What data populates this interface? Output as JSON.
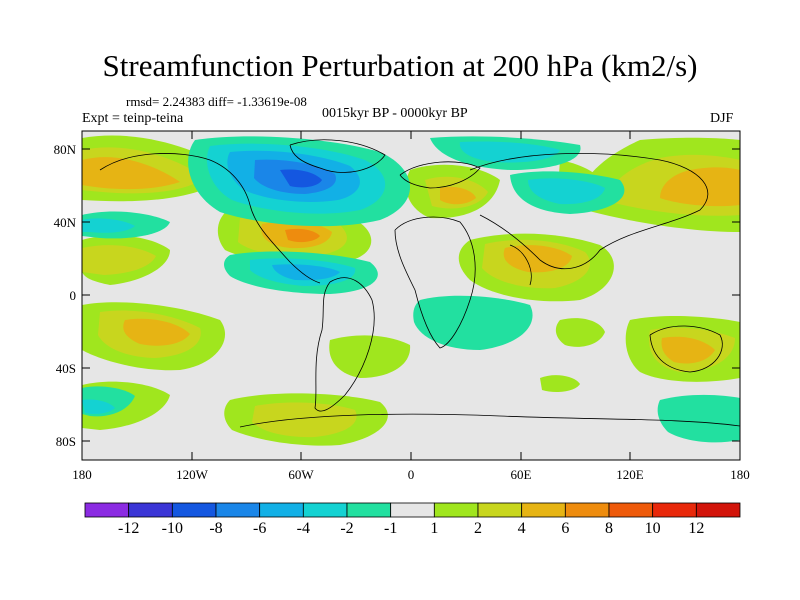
{
  "title": "Streamfunction Perturbation at 200 hPa (km2/s)",
  "stats": "rmsd= 2.24383 diff= -1.33619e-08",
  "experiment": "Expt = teinp-teina",
  "period": "0015kyr BP - 0000kyr BP",
  "season": "DJF",
  "lat_ticks": [
    "80N",
    "40N",
    "0",
    "40S",
    "80S"
  ],
  "lon_ticks": [
    "180",
    "120W",
    "60W",
    "0",
    "60E",
    "120E",
    "180"
  ],
  "colorbar": {
    "labels": [
      "-12",
      "-10",
      "-8",
      "-6",
      "-4",
      "-2",
      "-1",
      "1",
      "2",
      "4",
      "6",
      "8",
      "10",
      "12"
    ],
    "colors": [
      "#8b2be2",
      "#3b35d6",
      "#1457e0",
      "#1a86e8",
      "#12b0e6",
      "#14d2d2",
      "#22e0a0",
      "#e6e6e6",
      "#a0e61e",
      "#c8d61e",
      "#e6b414",
      "#ee8c0e",
      "#ee5a0a",
      "#e8280a",
      "#d2140a"
    ]
  }
}
